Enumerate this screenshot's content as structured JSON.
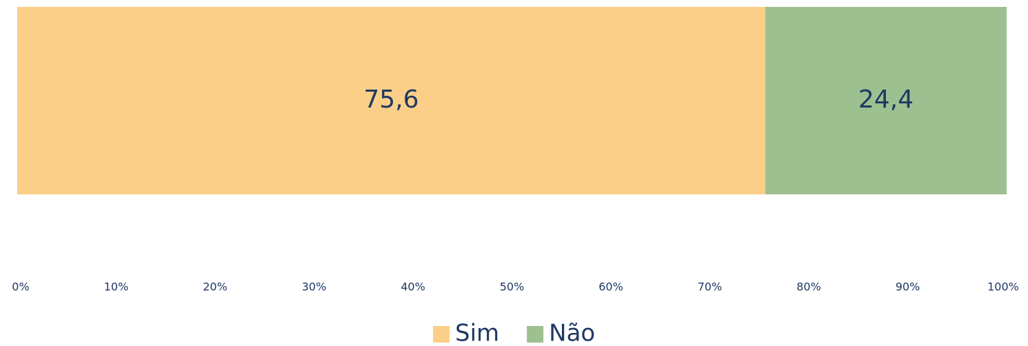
{
  "chart_data": {
    "type": "stacked_bar_horizontal",
    "categories": [
      null
    ],
    "series": [
      {
        "name": "Sim",
        "color": "#fbcf87",
        "values": [
          75.6
        ],
        "value_labels": [
          "75,6"
        ]
      },
      {
        "name": "Não",
        "color": "#9dc090",
        "values": [
          24.4
        ],
        "value_labels": [
          "24,4"
        ]
      }
    ],
    "xlim": [
      0,
      100
    ],
    "xticks": [
      {
        "value": 0,
        "label": "0%"
      },
      {
        "value": 10,
        "label": "10%"
      },
      {
        "value": 20,
        "label": "20%"
      },
      {
        "value": 30,
        "label": "30%"
      },
      {
        "value": 40,
        "label": "40%"
      },
      {
        "value": 50,
        "label": "50%"
      },
      {
        "value": 60,
        "label": "60%"
      },
      {
        "value": 70,
        "label": "70%"
      },
      {
        "value": 80,
        "label": "80%"
      },
      {
        "value": 90,
        "label": "90%"
      },
      {
        "value": 100,
        "label": "100%"
      }
    ],
    "grid": false,
    "legend": "bottom"
  }
}
